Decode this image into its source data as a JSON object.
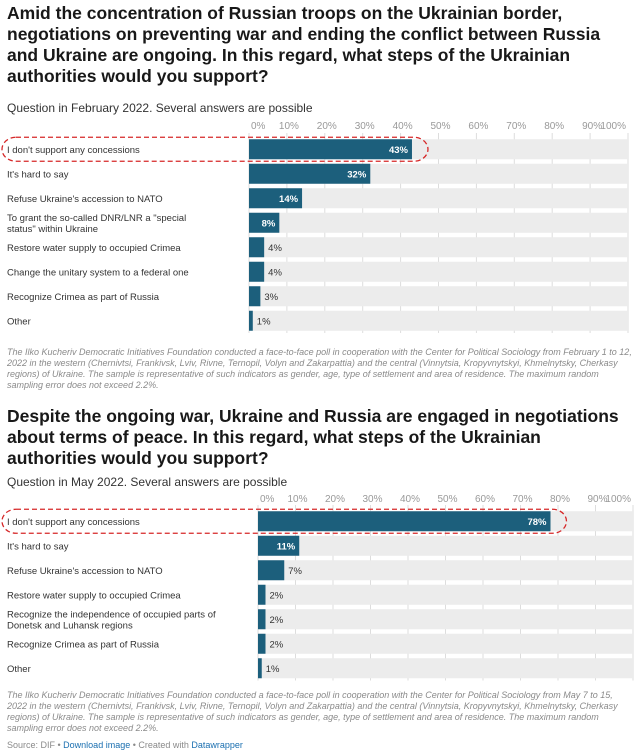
{
  "charts": [
    {
      "title": "Amid the concentration of Russian troops on the Ukrainian border, negotiations on preventing war and ending the conflict between Russia and Ukraine are ongoing. In this regard, what steps of the Ukrainian authorities would you support?",
      "subtitle": "Question in February 2022. Several answers are possible",
      "note": "The Ilko Kucheriv Democratic Initiatives Foundation conducted a face-to-face poll in cooperation with the Center for Political Sociology from February 1 to 12, 2022 in the western (Chernivtsi, Frankivsk, Lviv, Rivne, Ternopil, Volyn and Zakarpattia) and the central (Vinnytsia, Kropyvnytskyi, Khmelnytsky, Cherkasy regions) of Ukraine. The sample is representative of such indicators as gender, age, type of settlement and area of residence. The maximum random sampling error does not exceed 2.2%."
    },
    {
      "title": "Despite the ongoing war, Ukraine and Russia are engaged in negotiations about terms of peace. In this regard, what steps of the Ukrainian authorities would you support?",
      "subtitle": "Question in May 2022. Several answers are possible",
      "note": "The Ilko Kucheriv Democratic Initiatives Foundation conducted a face-to-face poll in cooperation with the Center for Political Sociology from May 7 to 15, 2022 in the western (Chernivtsi, Frankivsk, Lviv, Rivne, Ternopil, Volyn and Zakarpattia) and the central (Vinnytsia, Kropyvnytskyi, Khmelnytsky, Cherkasy regions) of Ukraine. The sample is representative of such indicators as gender, age, type of settlement and area of residence. The maximum random sampling error does not exceed 2.2%."
    }
  ],
  "footer": {
    "source": "Source: DIF",
    "sep1": " • ",
    "download": "Download image",
    "sep2": " • Created with ",
    "tool": "Datawrapper"
  },
  "colors": {
    "bar": "#1c5f7c",
    "track": "#ececec",
    "grid": "#dddddd",
    "highlight": "#d62728"
  },
  "chart_data": [
    {
      "type": "bar",
      "orientation": "horizontal",
      "categories": [
        "I don't support any concessions",
        "It's hard to say",
        "Refuse Ukraine's accession to NATO",
        "To grant the so-called DNR/LNR a \"special status\" within Ukraine",
        "Restore water supply to occupied Crimea",
        "Change the unitary system to a federal one",
        "Recognize Crimea as part of Russia",
        "Other"
      ],
      "values": [
        43,
        32,
        14,
        8,
        4,
        4,
        3,
        1
      ],
      "value_labels": [
        "43%",
        "32%",
        "14%",
        "8%",
        "4%",
        "4%",
        "3%",
        "1%"
      ],
      "xlim": [
        0,
        100
      ],
      "ticks": [
        "0%",
        "10%",
        "20%",
        "30%",
        "40%",
        "50%",
        "60%",
        "70%",
        "80%",
        "90%",
        "100%"
      ],
      "grid": true,
      "highlighted_category": "I don't support any concessions"
    },
    {
      "type": "bar",
      "orientation": "horizontal",
      "categories": [
        "I don't support any concessions",
        "It's hard to say",
        "Refuse Ukraine's accession to NATO",
        "Restore water supply to occupied Crimea",
        "Recognize the independence of occupied parts of Donetsk and Luhansk regions",
        "Recognize Crimea as part of Russia",
        "Other"
      ],
      "values": [
        78,
        11,
        7,
        2,
        2,
        2,
        1
      ],
      "value_labels": [
        "78%",
        "11%",
        "7%",
        "2%",
        "2%",
        "2%",
        "1%"
      ],
      "xlim": [
        0,
        100
      ],
      "ticks": [
        "0%",
        "10%",
        "20%",
        "30%",
        "40%",
        "50%",
        "60%",
        "70%",
        "80%",
        "90%",
        "100%"
      ],
      "grid": true,
      "highlighted_category": "I don't support any concessions"
    }
  ]
}
